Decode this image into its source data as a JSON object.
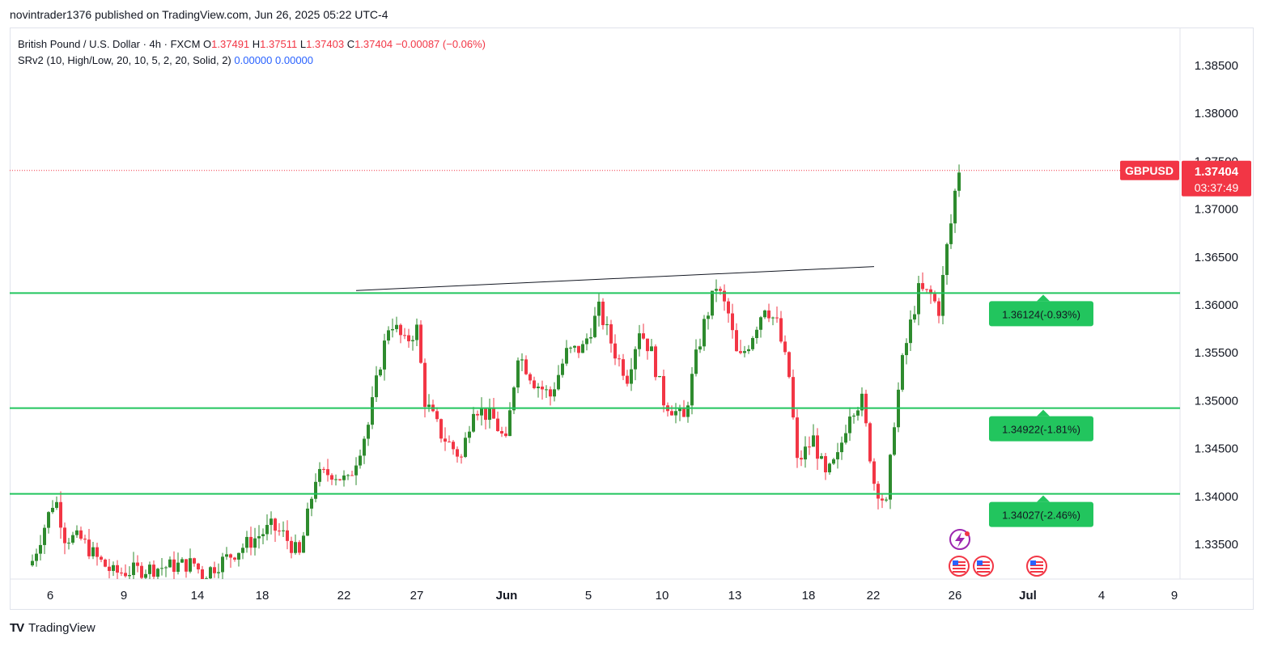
{
  "caption": "novintrader1376 published on TradingView.com, Jun 26, 2025 05:22 UTC-4",
  "legend": {
    "symbol": "British Pound / U.S. Dollar · 4h · FXCM",
    "o_label": "O",
    "o": "1.37491",
    "h_label": "H",
    "h": "1.37511",
    "l_label": "L",
    "l": "1.37403",
    "c_label": "C",
    "c": "1.37404",
    "change": "−0.00087 (−0.06%)",
    "indicator": "SRv2 (10, High/Low, 20, 10, 5, 2, 20, Solid, 2)",
    "ind_v1": "0.00000",
    "ind_v2": "0.00000"
  },
  "price_axis": {
    "labels": [
      "1.38500",
      "1.38000",
      "1.37500",
      "1.37000",
      "1.36500",
      "1.36000",
      "1.35500",
      "1.35000",
      "1.34500",
      "1.34000",
      "1.33500"
    ],
    "current_symbol": "GBPUSD",
    "current_price": "1.37404",
    "countdown": "03:37:49"
  },
  "time_axis": {
    "labels": [
      "6",
      "9",
      "14",
      "18",
      "22",
      "27",
      "Jun",
      "5",
      "10",
      "13",
      "18",
      "22",
      "26",
      "Jul",
      "4",
      "9"
    ]
  },
  "sr_levels": [
    {
      "price": 1.36124,
      "label": "1.36124(-0.93%)"
    },
    {
      "price": 1.34922,
      "label": "1.34922(-1.81%)"
    },
    {
      "price": 1.34027,
      "label": "1.34027(-2.46%)"
    }
  ],
  "colors": {
    "up": "#2e8b2e",
    "down": "#f23645",
    "sr_line": "#22c55e",
    "sr_label_bg": "#22c55e",
    "price_line": "#f23645",
    "trend_line": "#131722"
  },
  "footer": {
    "logo_text": "TradingView"
  },
  "chart_data": {
    "type": "candlestick",
    "interval": "4h",
    "ylim": [
      1.3325,
      1.3885
    ],
    "trendline": {
      "from_price": 1.3615,
      "to_price": 1.364
    },
    "current_price": 1.37404,
    "events": [
      "lightning-icon",
      "us-flag-icon",
      "us-flag-icon",
      "us-flag-icon"
    ]
  }
}
